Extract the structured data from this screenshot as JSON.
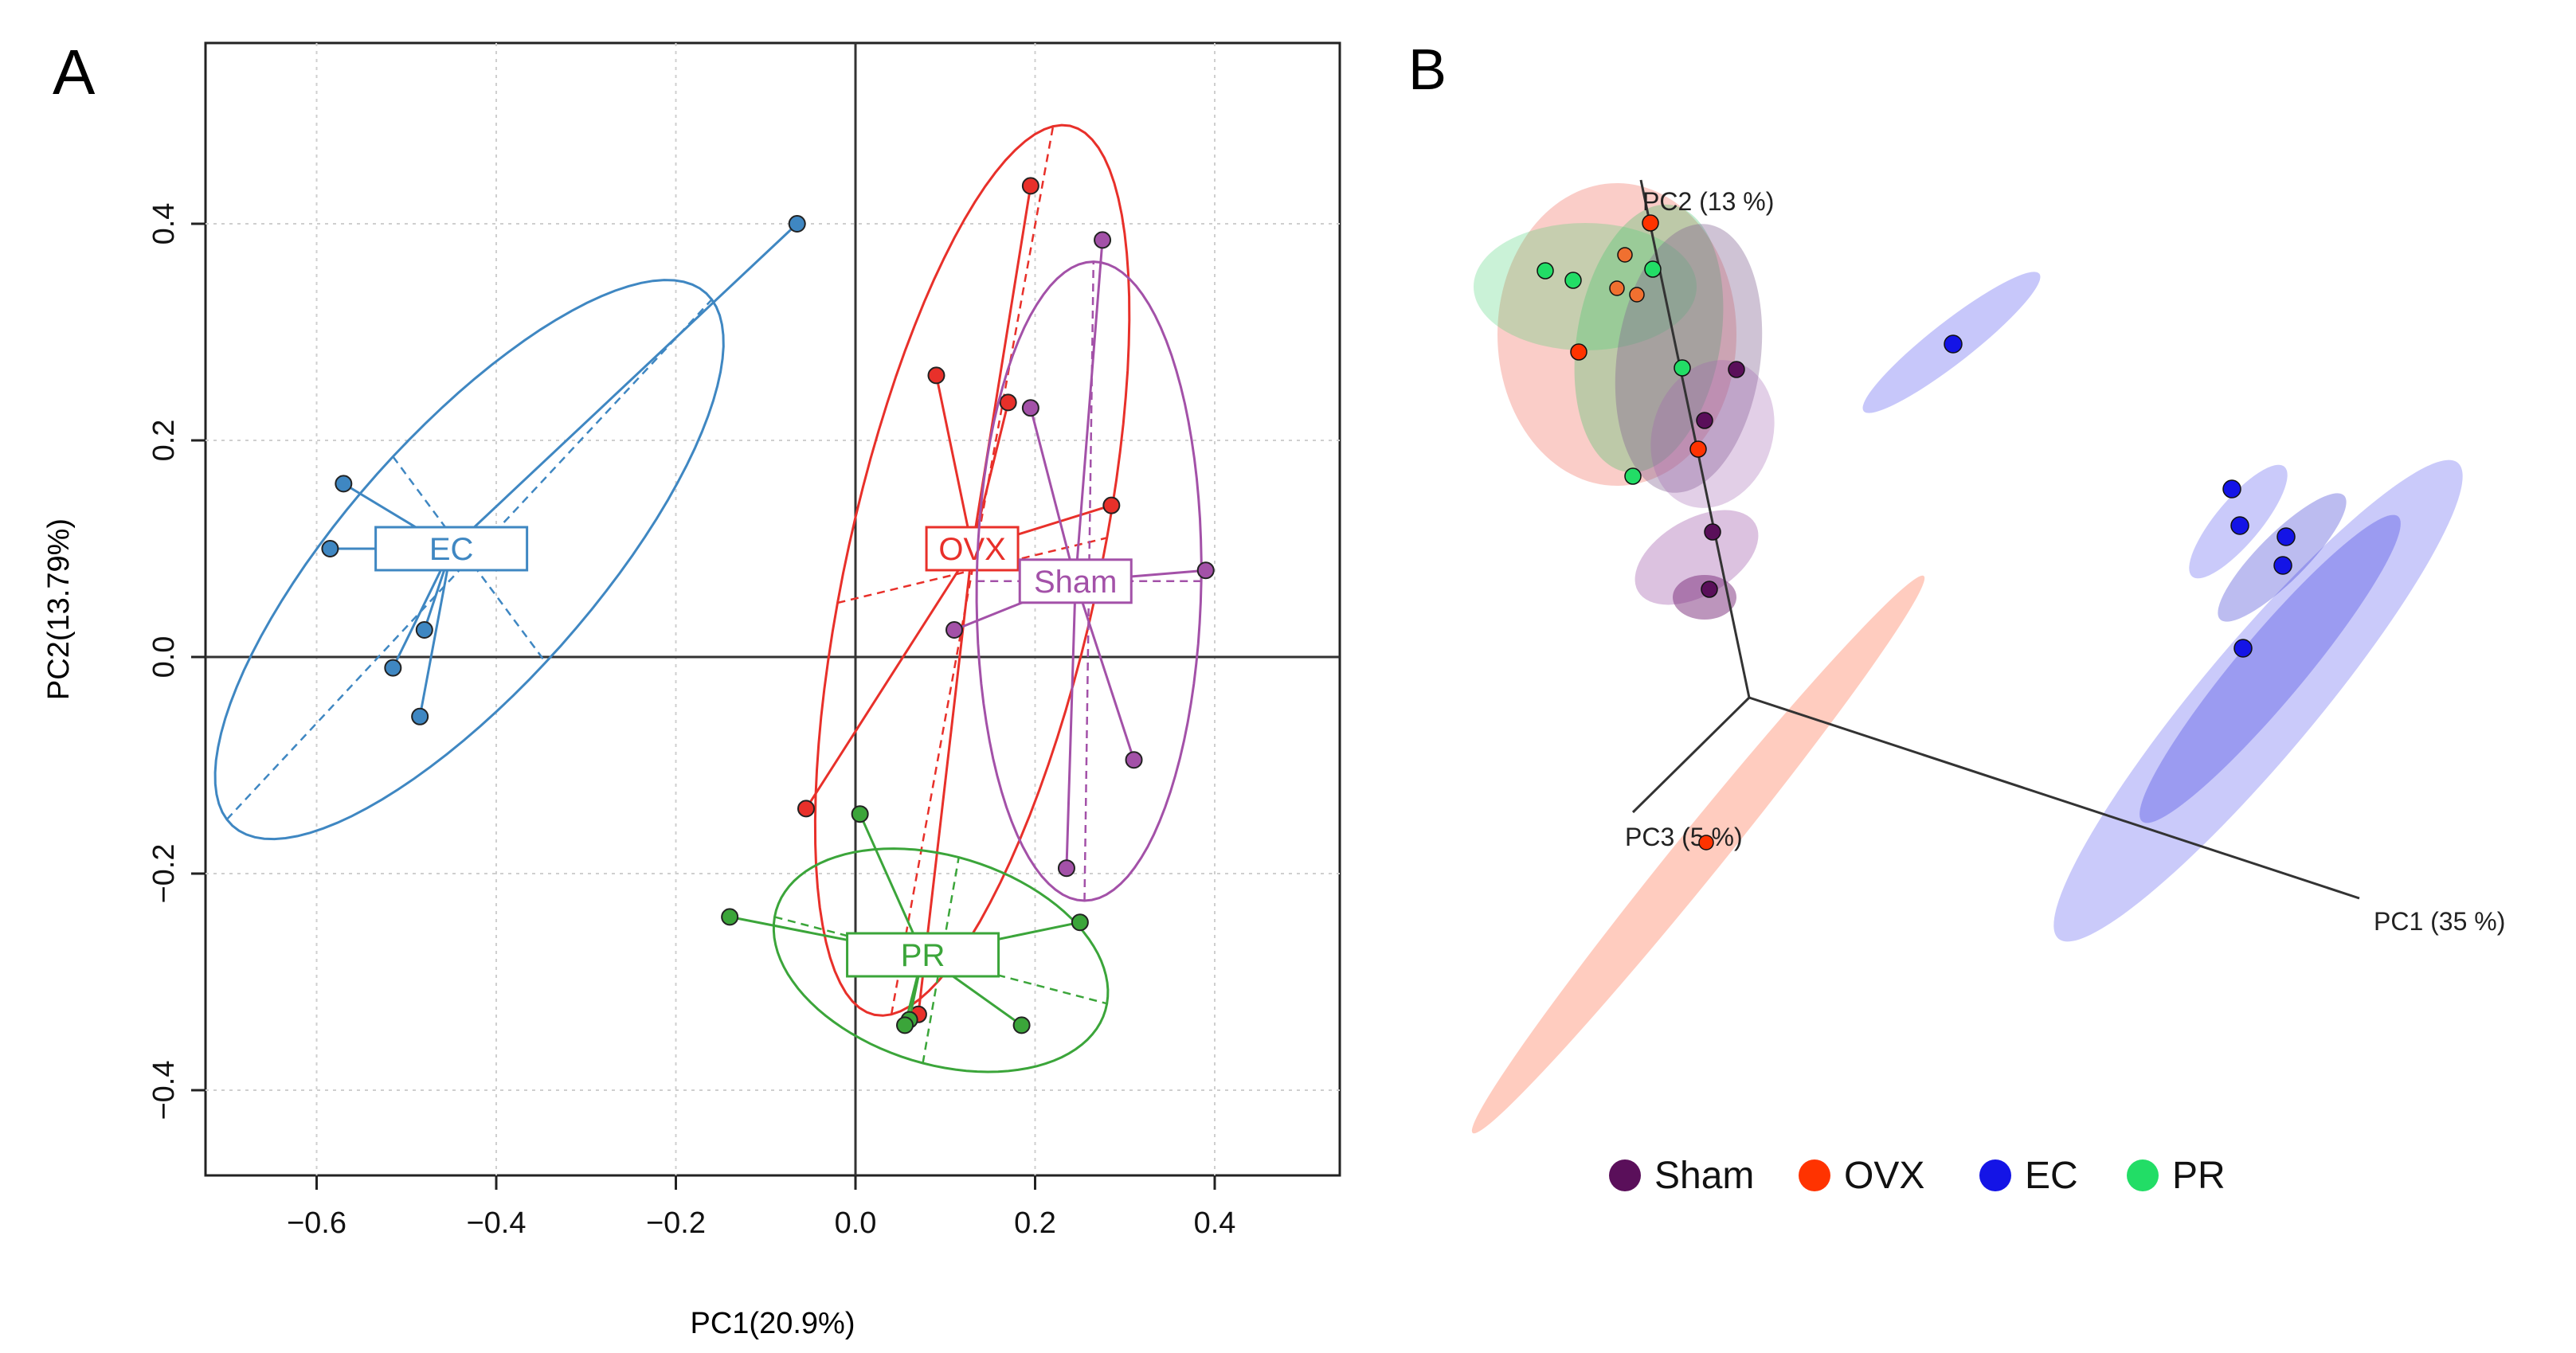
{
  "panel_labels": {
    "a": "A",
    "b": "B"
  },
  "colors": {
    "EC": "#3F87C2",
    "OVX": "#E8302A",
    "Sham": "#A351A8",
    "PR": "#3BA53A",
    "b_Sham": "#5A0F5A",
    "b_OVX": "#FF3300",
    "b_EC": "#1414E6",
    "b_PR": "#22DD66"
  },
  "chart_data": [
    {
      "type": "scatter",
      "panel": "A",
      "title": "",
      "xlabel": "PC1(20.9%)",
      "ylabel": "PC2(13.79%)",
      "xlim": [
        -0.72,
        0.53
      ],
      "ylim": [
        -0.45,
        0.55
      ],
      "x_ticks": [
        -0.6,
        -0.4,
        -0.2,
        0.0,
        0.2,
        0.4
      ],
      "x_tick_labels": [
        "−0.6",
        "−0.4",
        "−0.2",
        "0.0",
        "0.2",
        "0.4"
      ],
      "y_ticks": [
        -0.4,
        -0.2,
        0.0,
        0.2,
        0.4
      ],
      "y_tick_labels": [
        "−0.4",
        "−0.2",
        "0.0",
        "0.2",
        "0.4"
      ],
      "grid": true,
      "series": [
        {
          "name": "EC",
          "label": "EC",
          "centroid": [
            -0.45,
            0.1
          ],
          "points": [
            [
              -0.065,
              0.4
            ],
            [
              -0.57,
              0.16
            ],
            [
              -0.585,
              0.1
            ],
            [
              -0.48,
              0.025
            ],
            [
              -0.515,
              -0.01
            ],
            [
              -0.485,
              -0.055
            ]
          ],
          "ellipse": {
            "center": [
              -0.43,
              0.09
            ],
            "half_major": [
              0.27,
              0.24
            ],
            "half_minor": [
              0.085,
              -0.095
            ]
          }
        },
        {
          "name": "OVX",
          "label": "OVX",
          "centroid": [
            0.13,
            0.1
          ],
          "points": [
            [
              0.195,
              0.435
            ],
            [
              0.09,
              0.26
            ],
            [
              0.17,
              0.235
            ],
            [
              0.285,
              0.14
            ],
            [
              -0.055,
              -0.14
            ],
            [
              0.07,
              -0.33
            ]
          ],
          "ellipse": {
            "center": [
              0.13,
              0.08
            ],
            "half_major": [
              0.09,
              0.41
            ],
            "half_minor": [
              0.15,
              0.03
            ]
          }
        },
        {
          "name": "Sham",
          "label": "Sham",
          "centroid": [
            0.245,
            0.07
          ],
          "points": [
            [
              0.275,
              0.385
            ],
            [
              0.195,
              0.23
            ],
            [
              0.39,
              0.08
            ],
            [
              0.11,
              0.025
            ],
            [
              0.31,
              -0.095
            ],
            [
              0.235,
              -0.195
            ]
          ],
          "ellipse": {
            "center": [
              0.26,
              0.07
            ],
            "half_major": [
              0.005,
              0.295
            ],
            "half_minor": [
              0.125,
              0.0
            ]
          }
        },
        {
          "name": "PR",
          "label": "PR",
          "centroid": [
            0.075,
            -0.275
          ],
          "points": [
            [
              0.005,
              -0.145
            ],
            [
              -0.14,
              -0.24
            ],
            [
              0.25,
              -0.245
            ],
            [
              0.185,
              -0.34
            ],
            [
              0.06,
              -0.335
            ],
            [
              0.055,
              -0.34
            ]
          ],
          "ellipse": {
            "center": [
              0.095,
              -0.28
            ],
            "half_major": [
              0.185,
              -0.04
            ],
            "half_minor": [
              0.02,
              0.095
            ]
          }
        }
      ]
    },
    {
      "type": "scatter3d",
      "panel": "B",
      "axes": [
        {
          "name": "PC1",
          "label": "PC1 (35 %)"
        },
        {
          "name": "PC2",
          "label": "PC2 (13 %)"
        },
        {
          "name": "PC3",
          "label": "PC3 (5 %)"
        }
      ],
      "legend": [
        {
          "name": "Sham",
          "label": "Sham"
        },
        {
          "name": "OVX",
          "label": "OVX"
        },
        {
          "name": "EC",
          "label": "EC"
        },
        {
          "name": "PR",
          "label": "PR"
        }
      ],
      "legend_position": "bottom"
    }
  ]
}
